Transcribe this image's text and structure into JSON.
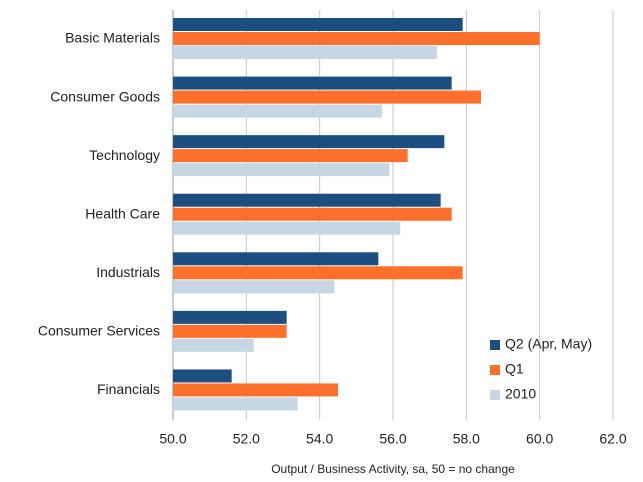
{
  "chart_data": {
    "type": "hbar",
    "xlabel": "Output / Business Activity, sa, 50 = no change",
    "categories": [
      "Basic Materials",
      "Consumer Goods",
      "Technology",
      "Health Care",
      "Industrials",
      "Consumer Services",
      "Financials"
    ],
    "series": [
      {
        "name": "Q2 (Apr, May)",
        "color": "#1c4f80",
        "values": [
          57.9,
          57.6,
          57.4,
          57.3,
          55.6,
          53.1,
          51.6
        ]
      },
      {
        "name": "Q1",
        "color": "#fd6f2a",
        "values": [
          60.0,
          58.4,
          56.4,
          57.6,
          57.9,
          53.1,
          54.5
        ]
      },
      {
        "name": "2010",
        "color": "#c6d6e3",
        "values": [
          57.2,
          55.7,
          55.9,
          56.2,
          54.4,
          52.2,
          53.4
        ]
      }
    ],
    "xlim": [
      50,
      62
    ],
    "xticks": [
      {
        "value": 50,
        "label": "50.0"
      },
      {
        "value": 52,
        "label": "52.0"
      },
      {
        "value": 54,
        "label": "54.0"
      },
      {
        "value": 56,
        "label": "56.0"
      },
      {
        "value": 58,
        "label": "58.0"
      },
      {
        "value": 60,
        "label": "60.0"
      },
      {
        "value": 62,
        "label": "62.0"
      }
    ],
    "grid": true,
    "legend": "lower right"
  }
}
